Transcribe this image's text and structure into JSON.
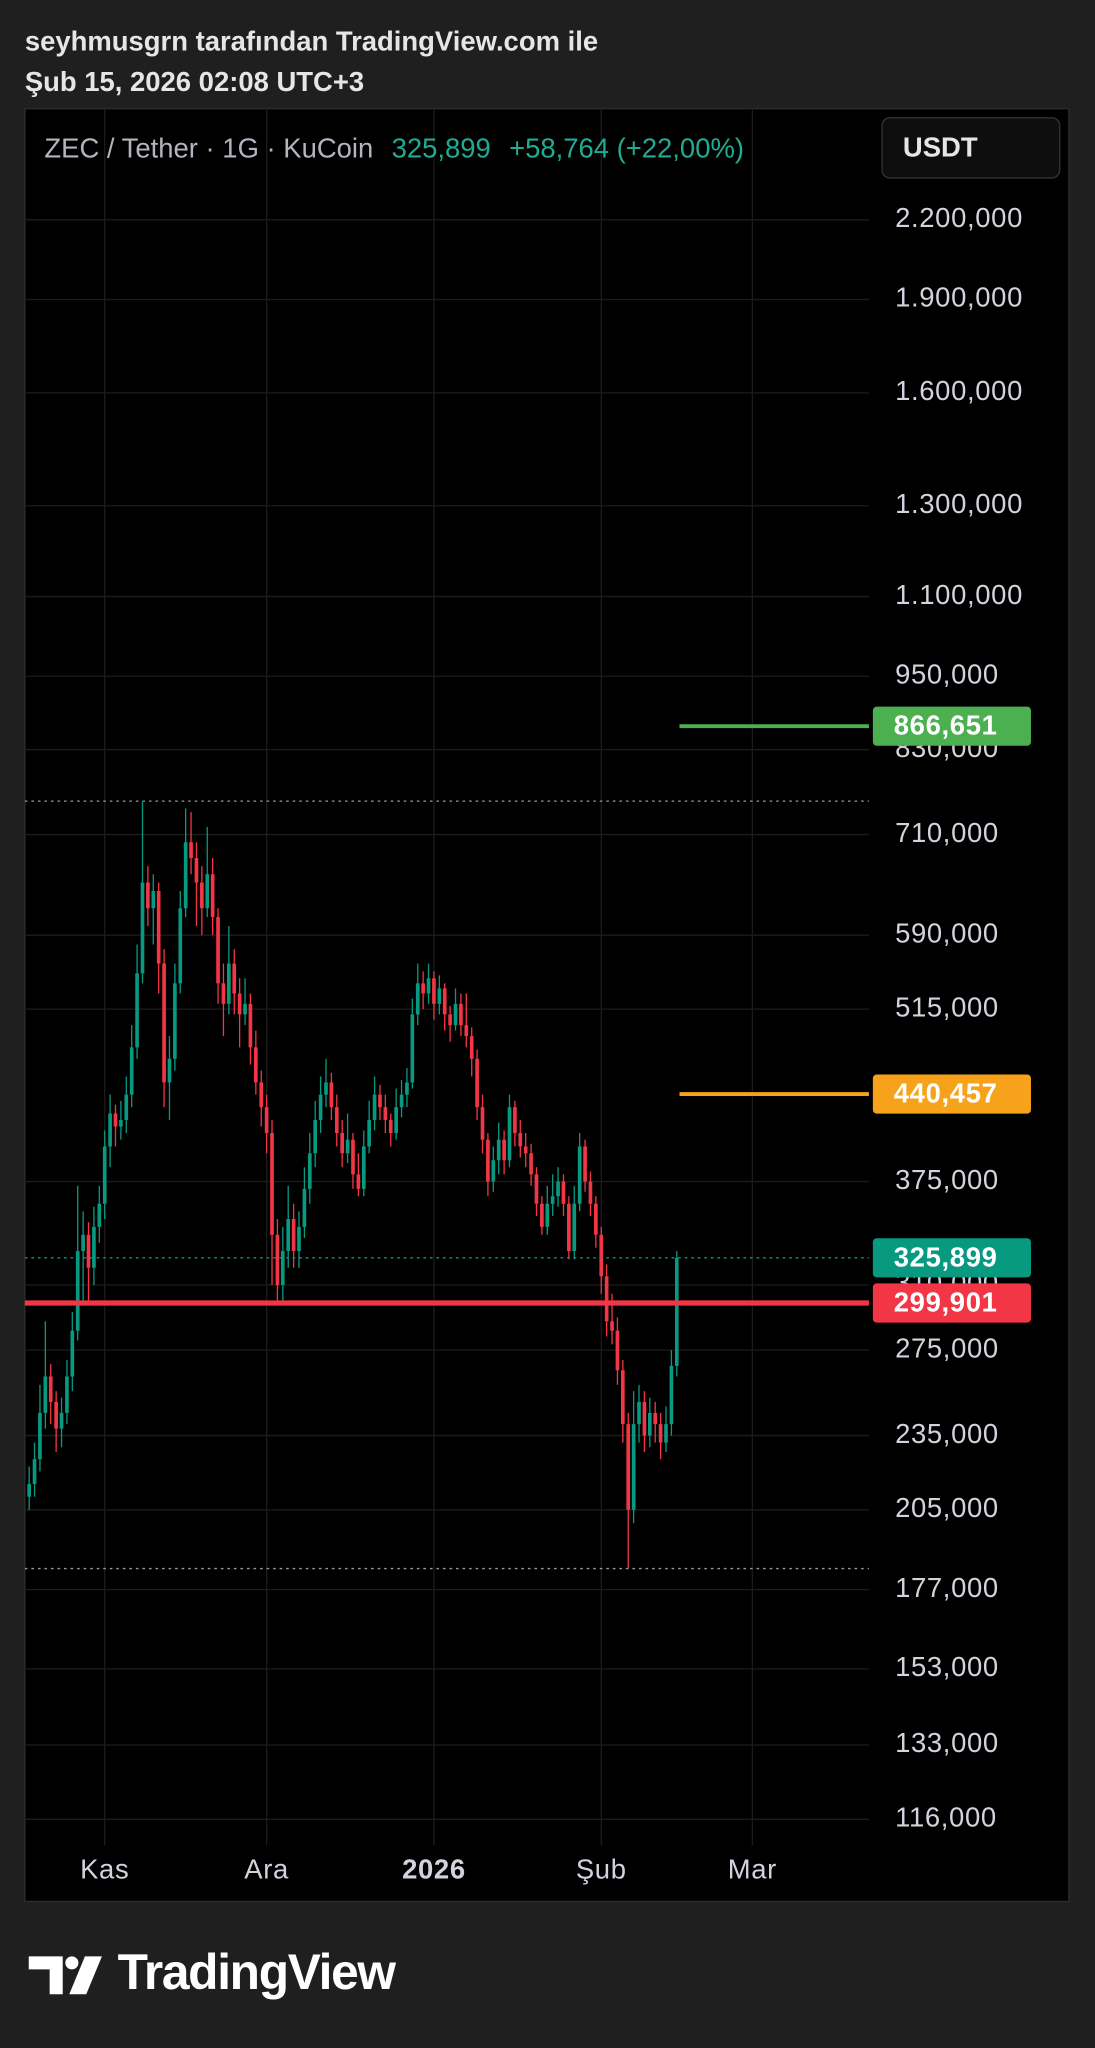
{
  "header": {
    "author_line": "seyhmusgrn tarafından TradingView.com ile",
    "timestamp": "Şub 15, 2026 02:08 UTC+3"
  },
  "footer": {
    "brand": "TradingView"
  },
  "chart_data": {
    "type": "candlestick",
    "title": "ZEC / Tether · 1G · KuCoin",
    "price_label": "325,899",
    "change_label": "+58,764 (+22,00%)",
    "currency": "USDT",
    "up_color": "#089981",
    "down_color": "#f23645",
    "log_scale": true,
    "grid": true,
    "ylim": [
      110.6,
      2699
    ],
    "yticks": [
      {
        "value": 2200,
        "label": "2.200,000"
      },
      {
        "value": 1900,
        "label": "1.900,000"
      },
      {
        "value": 1600,
        "label": "1.600,000"
      },
      {
        "value": 1300,
        "label": "1.300,000"
      },
      {
        "value": 1100,
        "label": "1.100,000"
      },
      {
        "value": 950,
        "label": "950,000"
      },
      {
        "value": 830,
        "label": "830,000"
      },
      {
        "value": 710,
        "label": "710,000"
      },
      {
        "value": 590,
        "label": "590,000"
      },
      {
        "value": 515,
        "label": "515,000"
      },
      {
        "value": 375,
        "label": "375,000"
      },
      {
        "value": 310,
        "label": "310,000"
      },
      {
        "value": 275,
        "label": "275,000"
      },
      {
        "value": 235,
        "label": "235,000"
      },
      {
        "value": 205,
        "label": "205,000"
      },
      {
        "value": 177,
        "label": "177,000"
      },
      {
        "value": 153,
        "label": "153,000"
      },
      {
        "value": 133,
        "label": "133,000"
      },
      {
        "value": 116,
        "label": "116,000"
      }
    ],
    "xlim": [
      -0.8,
      155.6
    ],
    "xticks": [
      {
        "value": 14,
        "label": "Kas"
      },
      {
        "value": 44,
        "label": "Ara"
      },
      {
        "value": 75,
        "label": "2026"
      },
      {
        "value": 106,
        "label": "Şub"
      },
      {
        "value": 134,
        "label": "Mar"
      }
    ],
    "levels": [
      {
        "value": 866.651,
        "label": "866,651",
        "color": "#4caf50",
        "style": "ray"
      },
      {
        "value": 440.457,
        "label": "440,457",
        "color": "#f7a21b",
        "style": "ray"
      },
      {
        "value": 299.901,
        "label": "299,901",
        "color": "#f23645",
        "style": "line"
      }
    ],
    "candles": [
      [
        210,
        222,
        205,
        215
      ],
      [
        215,
        232,
        210,
        225
      ],
      [
        225,
        258,
        220,
        245
      ],
      [
        245,
        290,
        238,
        262
      ],
      [
        262,
        268,
        240,
        250
      ],
      [
        250,
        255,
        228,
        238
      ],
      [
        238,
        252,
        230,
        245
      ],
      [
        245,
        270,
        240,
        262
      ],
      [
        262,
        295,
        255,
        285
      ],
      [
        285,
        372,
        280,
        330
      ],
      [
        330,
        355,
        300,
        340
      ],
      [
        340,
        348,
        300,
        320
      ],
      [
        320,
        358,
        310,
        345
      ],
      [
        345,
        372,
        335,
        360
      ],
      [
        360,
        412,
        350,
        400
      ],
      [
        400,
        440,
        385,
        425
      ],
      [
        425,
        432,
        400,
        415
      ],
      [
        415,
        435,
        405,
        420
      ],
      [
        420,
        455,
        410,
        440
      ],
      [
        440,
        500,
        430,
        480
      ],
      [
        480,
        580,
        470,
        550
      ],
      [
        550,
        755,
        540,
        650
      ],
      [
        650,
        670,
        600,
        620
      ],
      [
        620,
        660,
        580,
        640
      ],
      [
        640,
        650,
        530,
        560
      ],
      [
        560,
        575,
        430,
        450
      ],
      [
        450,
        490,
        420,
        470
      ],
      [
        470,
        560,
        460,
        540
      ],
      [
        540,
        640,
        530,
        620
      ],
      [
        620,
        745,
        610,
        700
      ],
      [
        700,
        740,
        660,
        680
      ],
      [
        680,
        700,
        600,
        650
      ],
      [
        650,
        670,
        590,
        620
      ],
      [
        620,
        720,
        610,
        660
      ],
      [
        660,
        680,
        590,
        610
      ],
      [
        610,
        620,
        520,
        540
      ],
      [
        540,
        560,
        490,
        520
      ],
      [
        520,
        600,
        510,
        560
      ],
      [
        560,
        575,
        510,
        530
      ],
      [
        530,
        545,
        480,
        510
      ],
      [
        510,
        545,
        500,
        520
      ],
      [
        520,
        530,
        465,
        480
      ],
      [
        480,
        495,
        440,
        450
      ],
      [
        450,
        460,
        415,
        430
      ],
      [
        430,
        440,
        395,
        410
      ],
      [
        410,
        420,
        310,
        340
      ],
      [
        340,
        350,
        300,
        310
      ],
      [
        310,
        345,
        300,
        330
      ],
      [
        330,
        372,
        320,
        350
      ],
      [
        350,
        360,
        320,
        330
      ],
      [
        330,
        355,
        320,
        345
      ],
      [
        345,
        385,
        338,
        370
      ],
      [
        370,
        410,
        360,
        395
      ],
      [
        395,
        435,
        385,
        420
      ],
      [
        420,
        455,
        410,
        440
      ],
      [
        440,
        470,
        430,
        450
      ],
      [
        450,
        458,
        420,
        430
      ],
      [
        430,
        440,
        400,
        410
      ],
      [
        410,
        420,
        385,
        395
      ],
      [
        395,
        425,
        388,
        405
      ],
      [
        405,
        410,
        370,
        380
      ],
      [
        380,
        395,
        365,
        370
      ],
      [
        370,
        412,
        365,
        400
      ],
      [
        400,
        435,
        395,
        420
      ],
      [
        420,
        455,
        412,
        440
      ],
      [
        440,
        448,
        420,
        430
      ],
      [
        430,
        440,
        410,
        420
      ],
      [
        420,
        425,
        400,
        410
      ],
      [
        410,
        445,
        405,
        430
      ],
      [
        430,
        452,
        422,
        440
      ],
      [
        440,
        462,
        430,
        450
      ],
      [
        450,
        525,
        445,
        510
      ],
      [
        510,
        560,
        500,
        540
      ],
      [
        540,
        552,
        515,
        530
      ],
      [
        530,
        560,
        520,
        545
      ],
      [
        545,
        552,
        505,
        520
      ],
      [
        520,
        548,
        510,
        535
      ],
      [
        535,
        540,
        495,
        510
      ],
      [
        510,
        518,
        485,
        500
      ],
      [
        500,
        535,
        495,
        520
      ],
      [
        520,
        530,
        490,
        500
      ],
      [
        500,
        530,
        480,
        490
      ],
      [
        490,
        498,
        455,
        470
      ],
      [
        470,
        478,
        420,
        430
      ],
      [
        430,
        440,
        395,
        405
      ],
      [
        405,
        410,
        365,
        375
      ],
      [
        375,
        400,
        368,
        390
      ],
      [
        390,
        418,
        380,
        405
      ],
      [
        405,
        412,
        380,
        390
      ],
      [
        390,
        440,
        385,
        430
      ],
      [
        430,
        435,
        400,
        410
      ],
      [
        410,
        420,
        392,
        400
      ],
      [
        400,
        410,
        385,
        395
      ],
      [
        395,
        402,
        372,
        380
      ],
      [
        380,
        385,
        352,
        360
      ],
      [
        360,
        365,
        340,
        345
      ],
      [
        345,
        372,
        340,
        360
      ],
      [
        360,
        380,
        352,
        365
      ],
      [
        365,
        385,
        358,
        375
      ],
      [
        375,
        380,
        352,
        360
      ],
      [
        360,
        365,
        325,
        330
      ],
      [
        330,
        372,
        325,
        360
      ],
      [
        360,
        410,
        355,
        400
      ],
      [
        400,
        405,
        368,
        375
      ],
      [
        375,
        382,
        352,
        360
      ],
      [
        360,
        365,
        332,
        340
      ],
      [
        340,
        345,
        305,
        315
      ],
      [
        315,
        322,
        282,
        290
      ],
      [
        290,
        305,
        278,
        285
      ],
      [
        285,
        292,
        258,
        265
      ],
      [
        265,
        270,
        232,
        240
      ],
      [
        240,
        245,
        184,
        205
      ],
      [
        205,
        255,
        200,
        240
      ],
      [
        240,
        258,
        232,
        250
      ],
      [
        250,
        255,
        228,
        235
      ],
      [
        235,
        252,
        230,
        245
      ],
      [
        245,
        250,
        232,
        240
      ],
      [
        240,
        245,
        225,
        232
      ],
      [
        232,
        248,
        228,
        240
      ],
      [
        240,
        275,
        235,
        267.135
      ],
      [
        267.135,
        330,
        262,
        325.899
      ]
    ]
  }
}
